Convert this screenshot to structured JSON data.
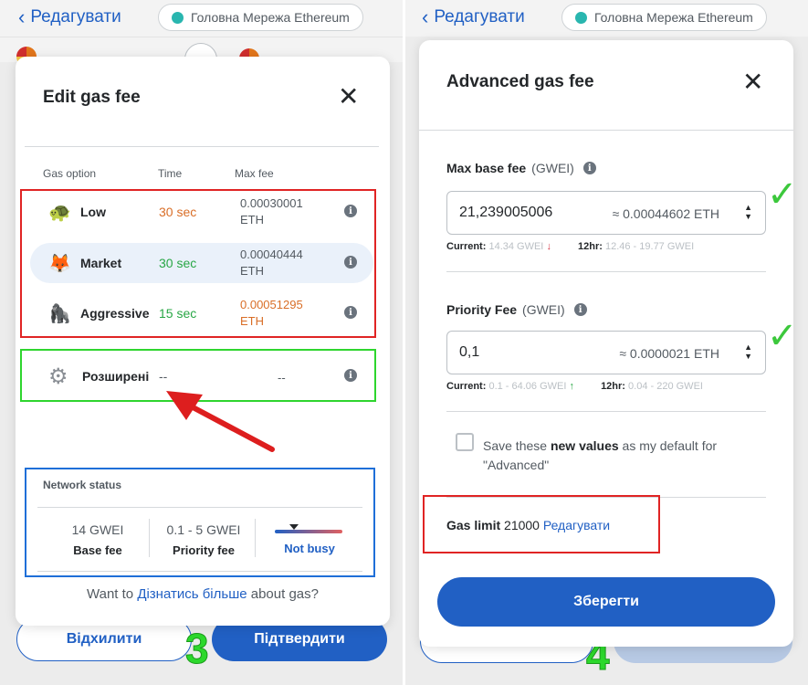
{
  "left": {
    "header": {
      "back_label": "Редагувати",
      "network": "Головна Мережа Ethereum"
    },
    "modal": {
      "title": "Edit gas fee",
      "columns": {
        "option": "Gas option",
        "time": "Time",
        "max_fee": "Max fee"
      },
      "options": [
        {
          "name": "Low",
          "time": "30 sec",
          "fee_line1": "0.00030001",
          "fee_line2": "ETH",
          "time_color": "#d96e27",
          "fee_color": "#535a61",
          "icon": "turtle-icon"
        },
        {
          "name": "Market",
          "time": "30 sec",
          "fee_line1": "0.00040444",
          "fee_line2": "ETH",
          "time_color": "#28a745",
          "fee_color": "#535a61",
          "icon": "fox-icon"
        },
        {
          "name": "Aggressive",
          "time": "15 sec",
          "fee_line1": "0.00051295",
          "fee_line2": "ETH",
          "time_color": "#28a745",
          "fee_color": "#d96e27",
          "icon": "gorilla-icon"
        }
      ],
      "advanced": {
        "name": "Розширені",
        "time": "--",
        "fee": "--",
        "icon": "gear-icon"
      },
      "network_status": {
        "title": "Network status",
        "base_fee_value": "14 GWEI",
        "base_fee_label": "Base fee",
        "priority_value": "0.1 - 5 GWEI",
        "priority_label": "Priority fee",
        "busy_label": "Not busy"
      },
      "footer": {
        "prefix": "Want to",
        "link": "Дізнатись більше",
        "suffix": "about gas?"
      }
    },
    "buttons": {
      "reject": "Відхилити",
      "confirm": "Підтвердити"
    },
    "step_number": "3"
  },
  "right": {
    "header": {
      "back_label": "Редагувати",
      "network": "Головна Мережа Ethereum"
    },
    "modal": {
      "title": "Advanced gas fee",
      "max_base_fee": {
        "label": "Max base fee",
        "unit": "(GWEI)",
        "value": "21,239005006",
        "converted": "≈ 0.00044602 ETH",
        "current_label": "Current:",
        "current_value": "14.34 GWEI",
        "hr_label": "12hr:",
        "hr_value": "12.46 - 19.77 GWEI"
      },
      "priority_fee": {
        "label": "Priority Fee",
        "unit": "(GWEI)",
        "value": "0,1",
        "converted": "≈ 0.0000021 ETH",
        "current_label": "Current:",
        "current_value": "0.1 - 64.06 GWEI",
        "hr_label": "12hr:",
        "hr_value": "0.04 - 220 GWEI"
      },
      "save_default": {
        "pre": "Save these",
        "bold": "new values",
        "post": "as my default for",
        "line2": "\"Advanced\""
      },
      "gas_limit": {
        "label": "Gas limit",
        "value": "21000",
        "edit": "Редагувати"
      },
      "save_button": "Зберегти"
    },
    "step_number": "4"
  },
  "colors": {
    "accent": "#2160c4",
    "red_box": "#e02424",
    "green_box": "#2ed52e",
    "blue_box": "#1f6fd8"
  }
}
